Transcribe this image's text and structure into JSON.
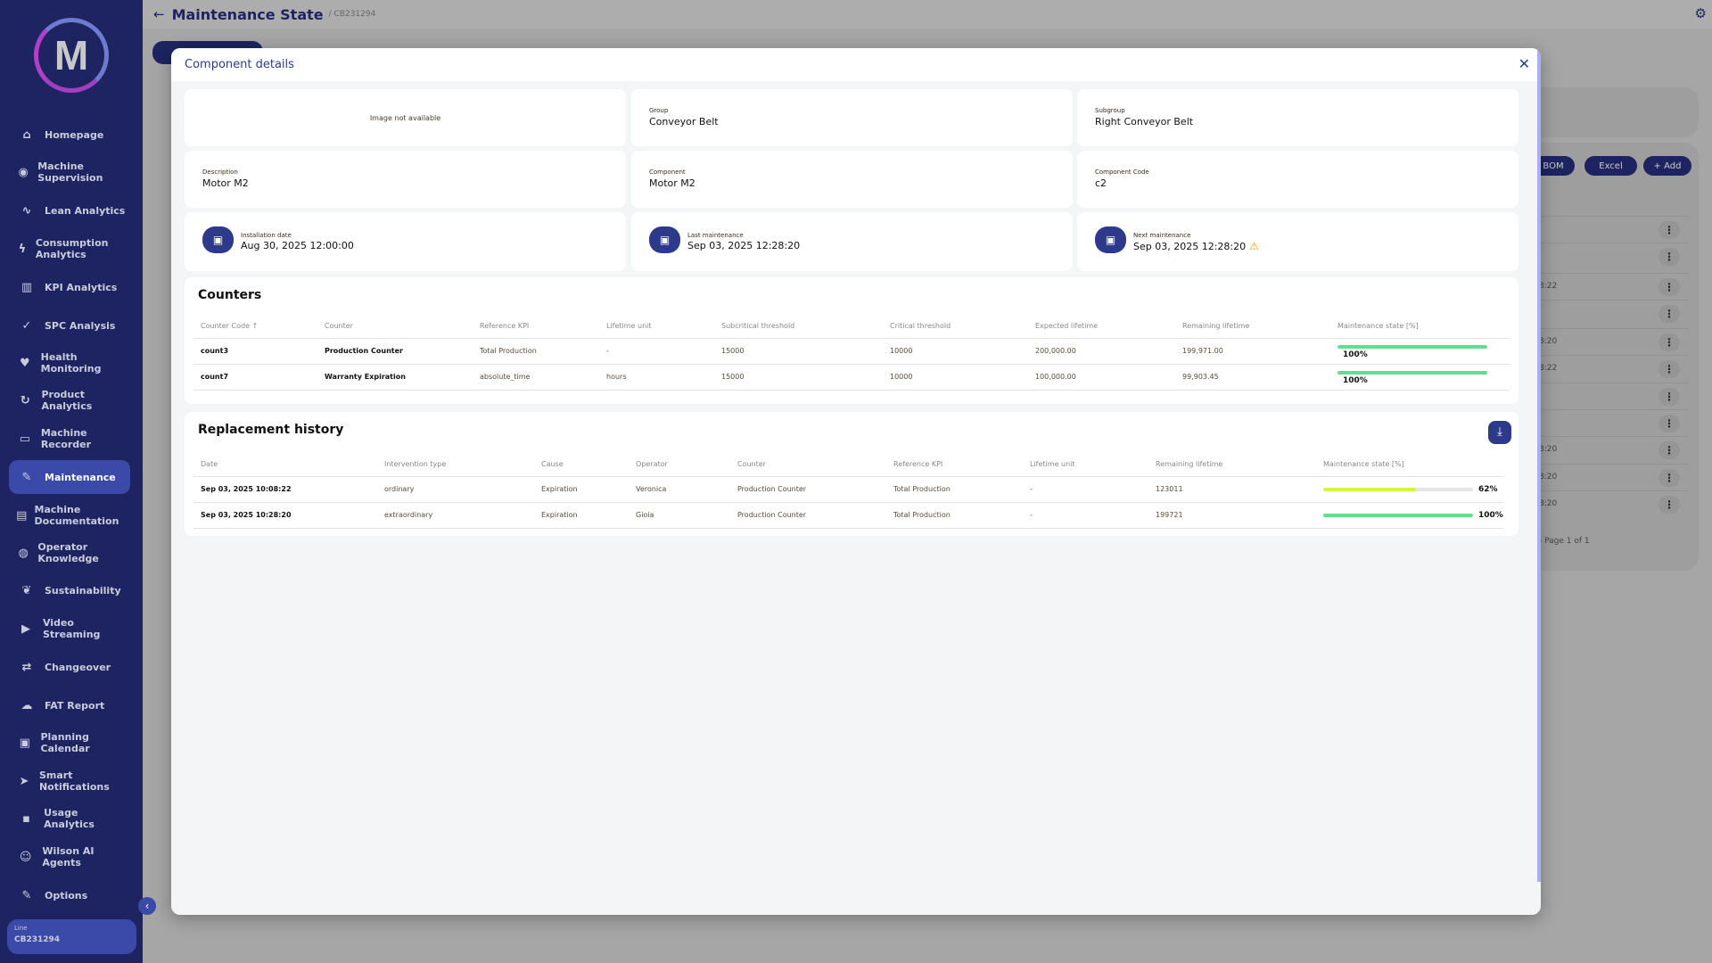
{
  "app": {
    "logo_letter": "M",
    "line_label": "Line",
    "line_value": "CB231294"
  },
  "sidebar": {
    "items": [
      {
        "label": "Homepage",
        "icon": "home-icon",
        "glyph": "⌂"
      },
      {
        "label": "Machine Supervision",
        "icon": "eye-icon",
        "glyph": "◉"
      },
      {
        "label": "Lean Analytics",
        "icon": "trend-icon",
        "glyph": "∿"
      },
      {
        "label": "Consumption Analytics",
        "icon": "bolt-icon",
        "glyph": "ϟ"
      },
      {
        "label": "KPI Analytics",
        "icon": "bar-chart-icon",
        "glyph": "▥"
      },
      {
        "label": "SPC Analysis",
        "icon": "check-icon",
        "glyph": "✓"
      },
      {
        "label": "Health Monitoring",
        "icon": "heart-icon",
        "glyph": "♥"
      },
      {
        "label": "Product Analytics",
        "icon": "cycle-icon",
        "glyph": "↻"
      },
      {
        "label": "Machine Recorder",
        "icon": "recorder-icon",
        "glyph": "▭"
      },
      {
        "label": "Maintenance",
        "icon": "wrench-icon",
        "glyph": "✎"
      },
      {
        "label": "Machine Documentation",
        "icon": "document-icon",
        "glyph": "▤"
      },
      {
        "label": "Operator Knowledge",
        "icon": "globe-icon",
        "glyph": "◍"
      },
      {
        "label": "Sustainability",
        "icon": "leaf-icon",
        "glyph": "❦"
      },
      {
        "label": "Video Streaming",
        "icon": "play-icon",
        "glyph": "▶"
      },
      {
        "label": "Changeover",
        "icon": "swap-icon",
        "glyph": "⇄"
      },
      {
        "label": "FAT Report",
        "icon": "cloud-upload-icon",
        "glyph": "☁"
      },
      {
        "label": "Planning Calendar",
        "icon": "calendar-icon",
        "glyph": "▣"
      },
      {
        "label": "Smart Notifications",
        "icon": "send-icon",
        "glyph": "➤"
      },
      {
        "label": "Usage Analytics",
        "icon": "user-card-icon",
        "glyph": "▪"
      },
      {
        "label": "Wilson AI Agents",
        "icon": "robot-icon",
        "glyph": "☺"
      },
      {
        "label": "Options",
        "icon": "wrench-icon",
        "glyph": "✎"
      }
    ],
    "active_index": 9
  },
  "header": {
    "title": "Maintenance State",
    "subtitle": "/ CB231294"
  },
  "background": {
    "buttons": [
      "BOM",
      "Excel",
      "+ Add"
    ],
    "pagination": "- Page 1 of 1",
    "times": [
      "8:22",
      "8:20",
      "8:22",
      "8:20",
      "8:20",
      "8:20"
    ]
  },
  "modal": {
    "title": "Component details",
    "image_placeholder": "Image not available",
    "group": {
      "label": "Group",
      "value": "Conveyor Belt"
    },
    "subgroup": {
      "label": "Subgroup",
      "value": "Right Conveyor Belt"
    },
    "description": {
      "label": "Description",
      "value": "Motor M2"
    },
    "component": {
      "label": "Component",
      "value": "Motor M2"
    },
    "component_code": {
      "label": "Component Code",
      "value": "c2"
    },
    "installation": {
      "label": "Installation date",
      "value": "Aug 30, 2025 12:00:00"
    },
    "last_maintenance": {
      "label": "Last maintenance",
      "value": "Sep 03, 2025 12:28:20"
    },
    "next_maintenance": {
      "label": "Next maintenance",
      "value": "Sep 03, 2025 12:28:20",
      "warning": true
    },
    "counters": {
      "title": "Counters",
      "columns": [
        "Counter Code ↑",
        "Counter",
        "Reference KPI",
        "Lifetime unit",
        "Subcritical threshold",
        "Critical threshold",
        "Expected lifetime",
        "Remaining lifetime",
        "Maintenance state [%]"
      ],
      "rows": [
        {
          "code": "count3",
          "counter": "Production Counter",
          "kpi": "Total Production",
          "unit": "-",
          "subcritical": "15000",
          "critical": "10000",
          "expected": "200,000.00",
          "remaining": "199,971.00",
          "state": 100,
          "state_label": "100%",
          "color": "#5ee08f"
        },
        {
          "code": "count7",
          "counter": "Warranty Expiration",
          "kpi": "absolute_time",
          "unit": "hours",
          "subcritical": "15000",
          "critical": "10000",
          "expected": "100,000.00",
          "remaining": "99,903.45",
          "state": 100,
          "state_label": "100%",
          "color": "#5ee08f"
        }
      ]
    },
    "history": {
      "title": "Replacement history",
      "columns": [
        "Date",
        "Intervention type",
        "Cause",
        "Operator",
        "Counter",
        "Reference KPI",
        "Lifetime unit",
        "Remaining lifetime",
        "Maintenance state [%]"
      ],
      "rows": [
        {
          "date": "Sep 03, 2025 10:08:22",
          "type": "ordinary",
          "cause": "Expiration",
          "operator": "Veronica",
          "counter": "Production Counter",
          "kpi": "Total Production",
          "unit": "-",
          "remaining": "123011",
          "state": 62,
          "state_label": "62%",
          "color": "#d4f53c"
        },
        {
          "date": "Sep 03, 2025 10:28:20",
          "type": "extraordinary",
          "cause": "Expiration",
          "operator": "Gioia",
          "counter": "Production Counter",
          "kpi": "Total Production",
          "unit": "-",
          "remaining": "199721",
          "state": 100,
          "state_label": "100%",
          "color": "#5ee08f"
        }
      ]
    }
  }
}
